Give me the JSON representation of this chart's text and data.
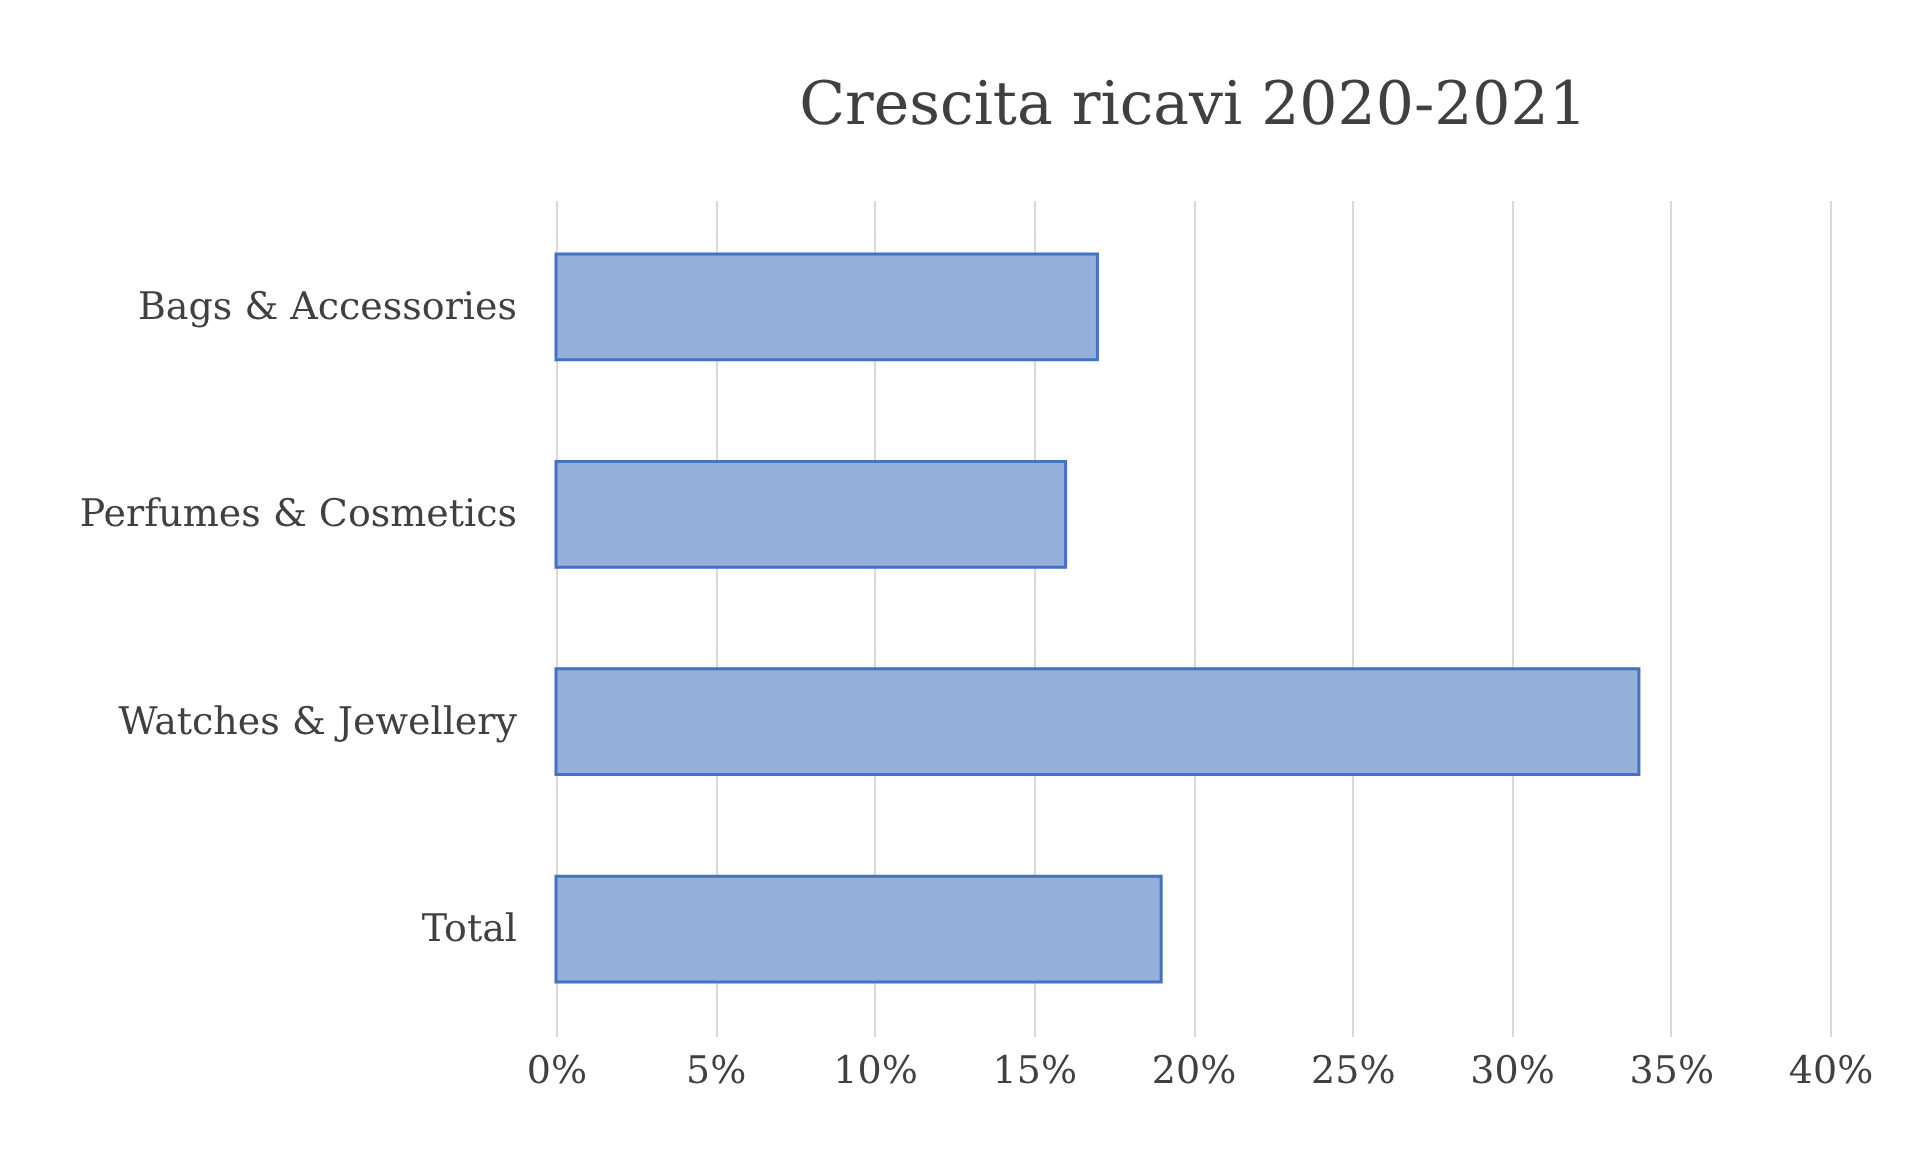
{
  "chart_data": {
    "type": "bar",
    "orientation": "horizontal",
    "title": "Crescita ricavi 2020-2021",
    "categories": [
      "Bags & Accessories",
      "Perfumes & Cosmetics",
      "Watches & Jewellery",
      "Total"
    ],
    "values": [
      17,
      16,
      34,
      19
    ],
    "color": "#95afda",
    "xlim": [
      0,
      40
    ],
    "xticks": [
      {
        "value": 0,
        "label": "0%"
      },
      {
        "value": 5,
        "label": "5%"
      },
      {
        "value": 10,
        "label": "10%"
      },
      {
        "value": 15,
        "label": "15%"
      },
      {
        "value": 20,
        "label": "20%"
      },
      {
        "value": 25,
        "label": "25%"
      },
      {
        "value": 30,
        "label": "30%"
      },
      {
        "value": 35,
        "label": "35%"
      },
      {
        "value": 40,
        "label": "40%"
      }
    ],
    "grid": "x"
  }
}
